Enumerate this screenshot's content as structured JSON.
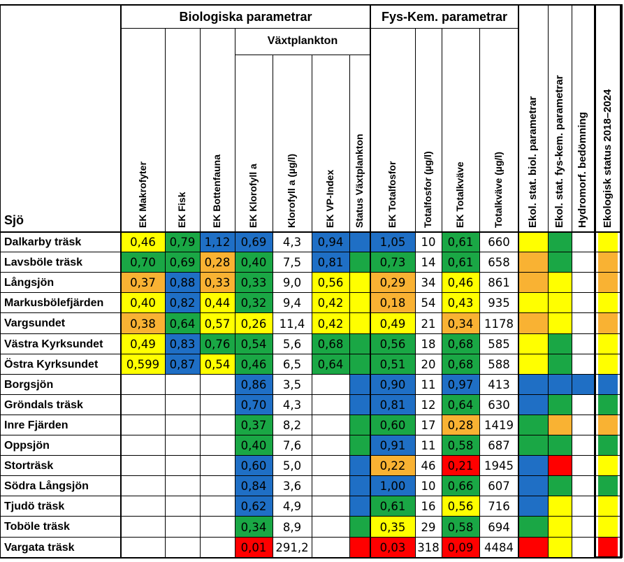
{
  "header": {
    "sjo_label": "Sjö",
    "bio_group": "Biologiska parametrar",
    "fys_group": "Fys-Kem. parametrar",
    "vp_group": "Växtplankton",
    "columns": [
      "EK Makrofyter",
      "EK Fisk",
      "EK Bottenfauna",
      "EK Klorofyll a",
      "Klorofyll a (µg/l)",
      "EK VP-Index",
      "Status Växtplankton",
      "EK Totalfosfor",
      "Totalfosfor (µg/l)",
      "EK Totalkväve",
      "Totalkväve (µg/l)"
    ],
    "status_columns": [
      "Ekol. stat. biol. parametrar",
      "Ekol. stat. fys-kem. parametrar",
      "Hydromorf. bedömning",
      "Ekologisk status 2018–2024"
    ]
  },
  "colors": {
    "B": "#1f6fc5",
    "G": "#1aa745",
    "Y": "#ffff00",
    "O": "#f9b233",
    "R": "#ff0000",
    "W": "#ffffff"
  },
  "rows": [
    {
      "name": "Dalkarby träsk",
      "values": [
        "0,46",
        "0,79",
        "1,12",
        "0,69",
        "4,3",
        "0,94",
        "",
        "1,05",
        "10",
        "0,61",
        "660",
        "",
        "",
        "",
        ""
      ],
      "colors": [
        "Y",
        "G",
        "B",
        "B",
        "W",
        "B",
        "B",
        "B",
        "W",
        "G",
        "W",
        "Y",
        "G",
        "W",
        "Y"
      ]
    },
    {
      "name": "Lavsböle träsk",
      "values": [
        "0,70",
        "0,69",
        "0,28",
        "0,40",
        "7,5",
        "0,81",
        "",
        "0,73",
        "14",
        "0,61",
        "658",
        "",
        "",
        "",
        ""
      ],
      "colors": [
        "G",
        "G",
        "O",
        "G",
        "W",
        "B",
        "G",
        "G",
        "W",
        "G",
        "W",
        "O",
        "G",
        "W",
        "O"
      ]
    },
    {
      "name": "Långsjön",
      "values": [
        "0,37",
        "0,88",
        "0,33",
        "0,33",
        "9,0",
        "0,56",
        "",
        "0,29",
        "34",
        "0,46",
        "861",
        "",
        "",
        "",
        ""
      ],
      "colors": [
        "O",
        "B",
        "O",
        "G",
        "W",
        "Y",
        "Y",
        "O",
        "W",
        "Y",
        "W",
        "O",
        "Y",
        "W",
        "O"
      ]
    },
    {
      "name": "Markusbölefjärden",
      "values": [
        "0,40",
        "0,82",
        "0,44",
        "0,32",
        "9,4",
        "0,42",
        "",
        "0,18",
        "54",
        "0,43",
        "935",
        "",
        "",
        "",
        ""
      ],
      "colors": [
        "Y",
        "B",
        "Y",
        "G",
        "W",
        "Y",
        "Y",
        "O",
        "W",
        "Y",
        "W",
        "Y",
        "Y",
        "W",
        "Y"
      ]
    },
    {
      "name": "Vargsundet",
      "values": [
        "0,38",
        "0,64",
        "0,57",
        "0,26",
        "11,4",
        "0,42",
        "",
        "0,49",
        "21",
        "0,34",
        "1178",
        "",
        "",
        "",
        ""
      ],
      "colors": [
        "O",
        "G",
        "Y",
        "Y",
        "W",
        "Y",
        "Y",
        "Y",
        "W",
        "O",
        "W",
        "O",
        "Y",
        "W",
        "O"
      ]
    },
    {
      "name": "Västra Kyrksundet",
      "values": [
        "0,49",
        "0,83",
        "0,76",
        "0,54",
        "5,6",
        "0,68",
        "",
        "0,56",
        "18",
        "0,68",
        "585",
        "",
        "",
        "",
        ""
      ],
      "colors": [
        "Y",
        "B",
        "G",
        "G",
        "W",
        "G",
        "G",
        "G",
        "W",
        "G",
        "W",
        "Y",
        "G",
        "W",
        "Y"
      ]
    },
    {
      "name": "Östra Kyrksundet",
      "values": [
        "0,599",
        "0,87",
        "0,54",
        "0,46",
        "6,5",
        "0,64",
        "",
        "0,51",
        "20",
        "0,68",
        "588",
        "",
        "",
        "",
        ""
      ],
      "colors": [
        "Y",
        "B",
        "Y",
        "G",
        "W",
        "G",
        "G",
        "G",
        "W",
        "G",
        "W",
        "Y",
        "G",
        "W",
        "Y"
      ]
    },
    {
      "name": "Borgsjön",
      "values": [
        "",
        "",
        "",
        "0,86",
        "3,5",
        "",
        "",
        "0,90",
        "11",
        "0,97",
        "413",
        "",
        "",
        "",
        ""
      ],
      "colors": [
        "W",
        "W",
        "W",
        "B",
        "W",
        "W",
        "B",
        "B",
        "W",
        "B",
        "W",
        "B",
        "B",
        "B",
        "B"
      ]
    },
    {
      "name": "Gröndals träsk",
      "values": [
        "",
        "",
        "",
        "0,70",
        "4,3",
        "",
        "",
        "0,81",
        "12",
        "0,64",
        "630",
        "",
        "",
        "",
        ""
      ],
      "colors": [
        "W",
        "W",
        "W",
        "B",
        "W",
        "W",
        "B",
        "B",
        "W",
        "G",
        "W",
        "B",
        "G",
        "W",
        "G"
      ]
    },
    {
      "name": "Inre Fjärden",
      "values": [
        "",
        "",
        "",
        "0,37",
        "8,2",
        "",
        "",
        "0,60",
        "17",
        "0,28",
        "1419",
        "",
        "",
        "",
        ""
      ],
      "colors": [
        "W",
        "W",
        "W",
        "G",
        "W",
        "W",
        "G",
        "G",
        "W",
        "O",
        "W",
        "G",
        "O",
        "W",
        "O"
      ]
    },
    {
      "name": "Oppsjön",
      "values": [
        "",
        "",
        "",
        "0,40",
        "7,6",
        "",
        "",
        "0,91",
        "11",
        "0,58",
        "687",
        "",
        "",
        "",
        ""
      ],
      "colors": [
        "W",
        "W",
        "W",
        "G",
        "W",
        "W",
        "G",
        "B",
        "W",
        "G",
        "W",
        "G",
        "G",
        "W",
        "G"
      ]
    },
    {
      "name": "Storträsk",
      "values": [
        "",
        "",
        "",
        "0,60",
        "5,0",
        "",
        "",
        "0,22",
        "46",
        "0,21",
        "1945",
        "",
        "",
        "",
        ""
      ],
      "colors": [
        "W",
        "W",
        "W",
        "B",
        "W",
        "W",
        "B",
        "O",
        "W",
        "R",
        "W",
        "B",
        "R",
        "W",
        "Y"
      ]
    },
    {
      "name": "Södra Långsjön",
      "values": [
        "",
        "",
        "",
        "0,84",
        "3,6",
        "",
        "",
        "1,00",
        "10",
        "0,66",
        "607",
        "",
        "",
        "",
        ""
      ],
      "colors": [
        "W",
        "W",
        "W",
        "B",
        "W",
        "W",
        "B",
        "B",
        "W",
        "G",
        "W",
        "B",
        "G",
        "W",
        "G"
      ]
    },
    {
      "name": "Tjudö träsk",
      "values": [
        "",
        "",
        "",
        "0,62",
        "4,9",
        "",
        "",
        "0,61",
        "16",
        "0,56",
        "716",
        "",
        "",
        "",
        ""
      ],
      "colors": [
        "W",
        "W",
        "W",
        "B",
        "W",
        "W",
        "B",
        "G",
        "W",
        "Y",
        "W",
        "B",
        "Y",
        "W",
        "Y"
      ]
    },
    {
      "name": "Toböle träsk",
      "values": [
        "",
        "",
        "",
        "0,34",
        "8,9",
        "",
        "",
        "0,35",
        "29",
        "0,58",
        "694",
        "",
        "",
        "",
        ""
      ],
      "colors": [
        "W",
        "W",
        "W",
        "G",
        "W",
        "W",
        "G",
        "Y",
        "W",
        "G",
        "W",
        "G",
        "Y",
        "W",
        "Y"
      ]
    },
    {
      "name": "Vargata träsk",
      "values": [
        "",
        "",
        "",
        "0,01",
        "291,2",
        "",
        "",
        "0,03",
        "318",
        "0,09",
        "4484",
        "",
        "",
        "",
        ""
      ],
      "colors": [
        "W",
        "W",
        "W",
        "R",
        "W",
        "W",
        "R",
        "R",
        "W",
        "R",
        "W",
        "R",
        "Y",
        "W",
        "R"
      ]
    }
  ]
}
